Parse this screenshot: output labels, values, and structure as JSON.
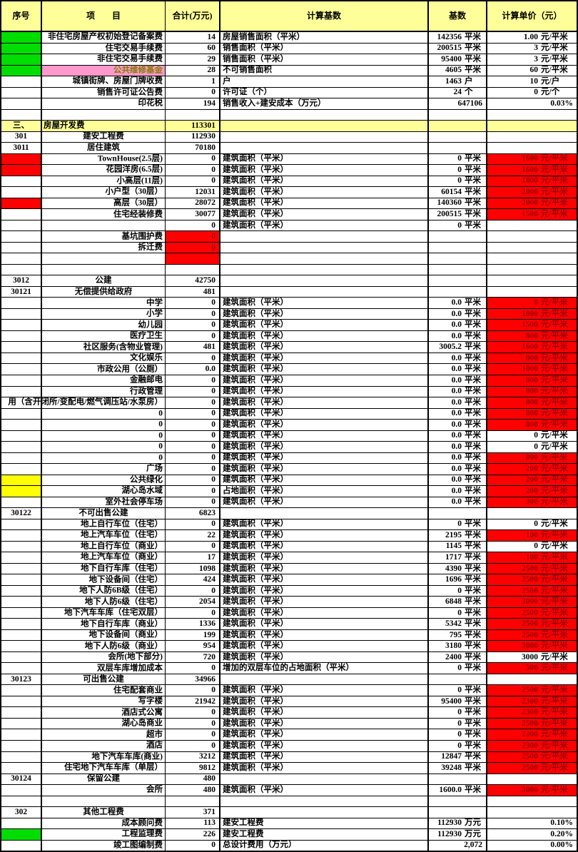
{
  "sheet": {
    "type": "spreadsheet-cost-table",
    "colors": {
      "header_bg": "#ffff99",
      "section_bg": "#ffff99",
      "green_fill": "#00dd00",
      "red_fill": "#fe0000",
      "red_text": "#9c0006",
      "yellow_fill": "#ffff00",
      "pink_fill": "#ff99cc",
      "pink_text": "#7f7f00",
      "grid": "#000000"
    },
    "columns": [
      {
        "key": "seq",
        "label": "序号"
      },
      {
        "key": "item",
        "label": "项　　目"
      },
      {
        "key": "total",
        "label": "合计(万元)"
      },
      {
        "key": "basis",
        "label": "计算基数"
      },
      {
        "key": "base",
        "label": "基数"
      },
      {
        "key": "price",
        "label": "计算单价（元）"
      }
    ],
    "row_key_legend": {
      "s": "seq number text",
      "sb": "seq cell fill: g=green r=red y=yellow",
      "i": "item text",
      "ib": "item cell fill: p=pink",
      "ia": "item align: r=right(default) c=center l=left",
      "t": "total (万元)",
      "tb": "total cell fill: r=red",
      "b": "calculation basis text",
      "v": "base value with unit",
      "p": "unit price text",
      "pb": "price cell fill: r=red",
      "sec": "true = yellow section row"
    },
    "rows": [
      {
        "sb": "g",
        "i": "非住宅房屋产权初始登记备案费",
        "t": "14",
        "b": "房屋销售面积（平米）",
        "v": "142356 平米",
        "p": "1.00 元/平米"
      },
      {
        "sb": "g",
        "i": "住宅交易手续费",
        "t": "60",
        "b": "销售面积（平米）",
        "v": "200515 平米",
        "p": "3 元/平米"
      },
      {
        "sb": "g",
        "i": "非住宅交易手续费",
        "t": "29",
        "b": "销售面积（平米）",
        "v": "95400 平米",
        "p": "3 元/平米"
      },
      {
        "sb": "g",
        "i": "公共维修基金",
        "ib": "p",
        "t": "28",
        "b": "不可销售面积",
        "v": "4605 平米",
        "p": "60 元/平米"
      },
      {
        "i": "城镇街牌、房屋门牌收费",
        "t": "1",
        "b": "户",
        "v": "1463 户",
        "p": "10 元/户"
      },
      {
        "i": "销售许可证公告费",
        "t": "0",
        "b": "许可证（个）",
        "v": "24 个",
        "p": "0 元/个"
      },
      {
        "i": "印花税",
        "t": "194",
        "b": "销售收入+建安成本（万元）",
        "v": "647106",
        "p": "0.03%"
      },
      {},
      {
        "s": "三、",
        "i": "房屋开发费",
        "ia": "l",
        "t": "113301",
        "sec": true
      },
      {
        "s": "301",
        "i": "建安工程费",
        "ia": "c",
        "t": "112930"
      },
      {
        "s": "3011",
        "i": "居住建筑",
        "ia": "c",
        "t": "70180"
      },
      {
        "sb": "r",
        "i": "TownHouse(2.5层)",
        "t": "0",
        "b": "建筑面积（平米）",
        "v": "0 平米",
        "p": "1600 元/平米",
        "pb": "r"
      },
      {
        "sb": "r",
        "i": "花园洋房(6.5层)",
        "t": "0",
        "b": "建筑面积（平米）",
        "v": "0 平米",
        "p": "1600 元/平米",
        "pb": "r"
      },
      {
        "i": "小高层(11层)",
        "t": "0",
        "b": "建筑面积（平米）",
        "v": "0 平米",
        "p": "1800 元/平米",
        "pb": "r"
      },
      {
        "i": "小户型（30层）",
        "t": "12031",
        "b": "建筑面积（平米）",
        "v": "60154 平米",
        "p": "2000 元/平米",
        "pb": "r"
      },
      {
        "sb": "r",
        "i": "高层（30层）",
        "t": "28072",
        "b": "建筑面积（平米）",
        "v": "140360 平米",
        "p": "2000 元/平米",
        "pb": "r"
      },
      {
        "i": "住宅经装修费",
        "t": "30077",
        "b": "建筑面积（平米）",
        "v": "200515 平米",
        "p": "1500 元/平米",
        "pb": "r"
      },
      {
        "t": "0",
        "b": "建筑面积（平米）",
        "v": "0 平米"
      },
      {
        "i": "基坑围护费",
        "t": "0",
        "tb": "r"
      },
      {
        "i": "拆迁费",
        "t": "0",
        "tb": "r"
      },
      {
        "tb": "r"
      },
      {},
      {
        "s": "3012",
        "i": "公建",
        "ia": "c",
        "t": "42750"
      },
      {
        "s": "30121",
        "i": "无偿提供给政府",
        "ia": "c",
        "t": "481"
      },
      {
        "i": "中学",
        "t": "0",
        "b": "建筑面积（平米）",
        "v": "0.0 平米",
        "p": "0 元/平米",
        "pb": "r"
      },
      {
        "i": "小学",
        "t": "0",
        "b": "建筑面积（平米）",
        "v": "0.0 平米",
        "p": "1000 元/平米",
        "pb": "r"
      },
      {
        "i": "幼儿园",
        "t": "0",
        "b": "建筑面积（平米）",
        "v": "0.0 平米",
        "p": "1500 元/平米",
        "pb": "r"
      },
      {
        "i": "医疗卫生",
        "t": "0",
        "b": "建筑面积（平米）",
        "v": "0.0 平米",
        "p": "800 元/平米",
        "pb": "r"
      },
      {
        "i": "社区服务(含物业管理)",
        "t": "481",
        "b": "建筑面积（平米）",
        "v": "3005.2 平米",
        "p": "1600 元/平米",
        "pb": "r"
      },
      {
        "i": "文化娱乐",
        "t": "0",
        "b": "建筑面积（平米）",
        "v": "0.0 平米",
        "p": "800 元/平米",
        "pb": "r"
      },
      {
        "i": "市政公用（公厕）",
        "t": "0.0",
        "b": "建筑面积（平米）",
        "v": "0.0 平米",
        "p": "1000 元/平米",
        "pb": "r"
      },
      {
        "i": "金融邮电",
        "t": "0",
        "b": "建筑面积（平米）",
        "v": "0.0 平米",
        "p": "800 元/平米",
        "pb": "r"
      },
      {
        "i": "行政管理",
        "t": "0",
        "b": "建筑面积（平米）",
        "v": "0.0 平米",
        "p": "800 元/平米",
        "pb": "r"
      },
      {
        "i": "用（含开闭所/变配电/燃气调压站/水泵房）",
        "t": "0",
        "b": "建筑面积（平米）",
        "v": "0.0 平米",
        "p": "800 元/平米",
        "pb": "r"
      },
      {
        "i": "0",
        "t": "0",
        "b": "建筑面积（平米）",
        "v": "0.0 平米",
        "p": "800 元/平米",
        "pb": "r"
      },
      {
        "i": "0",
        "t": "0",
        "b": "建筑面积（平米）",
        "v": "0.0 平米",
        "p": "800 元/平米",
        "pb": "r"
      },
      {
        "i": "0",
        "t": "0",
        "b": "建筑面积（平米）",
        "v": "0.0 平米",
        "p": "0 元/平米"
      },
      {
        "i": "0",
        "t": "0",
        "b": "建筑面积（平米）",
        "v": "0.0 平米",
        "p": "0 元/平米"
      },
      {
        "i": "0",
        "t": "0",
        "b": "建筑面积（平米）",
        "v": "0.0 平米",
        "p": "800 元/平米",
        "pb": "r"
      },
      {
        "i": "广场",
        "t": "0",
        "b": "建筑面积（平米）",
        "v": "0.0 平米",
        "p": "200 元/平米",
        "pb": "r"
      },
      {
        "sb": "y",
        "i": "公共绿化",
        "t": "0",
        "b": "建筑面积（平米）",
        "v": "0.0 平米",
        "p": "200 元/平米",
        "pb": "r"
      },
      {
        "sb": "y",
        "i": "湖心岛水域",
        "t": "0",
        "b": "占地面积（平米）",
        "v": "0.0 平米",
        "p": "200 元/平米",
        "pb": "r"
      },
      {
        "i": "室外社会停车场",
        "t": "0",
        "b": "建筑面积（平米）",
        "v": "0.0 平米",
        "p": "300 元/平米",
        "pb": "r"
      },
      {
        "s": "30122",
        "i": "不可出售公建",
        "ia": "c",
        "t": "6823"
      },
      {
        "i": "地上自行车位（住宅）",
        "t": "0",
        "b": "建筑面积（平米）",
        "v": "0 平米",
        "p": "0 元/平米"
      },
      {
        "i": "地上汽车车位（住宅）",
        "t": "22",
        "b": "建筑面积（平米）",
        "v": "2195 平米",
        "p": "100 元/平米",
        "pb": "r"
      },
      {
        "i": "地上自行车位（商业）",
        "t": "0",
        "b": "建筑面积（平米）",
        "v": "1145 平米",
        "p": "0 元/平米"
      },
      {
        "i": "地上汽车车位（商业）",
        "t": "17",
        "b": "建筑面积（平米）",
        "v": "1717 平米",
        "p": "100 元/平米",
        "pb": "r"
      },
      {
        "i": "地下自行车库（住宅）",
        "t": "1098",
        "b": "建筑面积（平米）",
        "v": "4390 平米",
        "p": "2500 元/平米",
        "pb": "r"
      },
      {
        "i": "地下设备间（住宅）",
        "t": "424",
        "b": "建筑面积（平米）",
        "v": "1696 平米",
        "p": "2500 元/平米",
        "pb": "r"
      },
      {
        "i": "地下人防6B级（住宅）",
        "t": "0",
        "b": "建筑面积（平米）",
        "v": "0 平米",
        "p": "2500 元/平米",
        "pb": "r"
      },
      {
        "i": "地下人防6级（住宅）",
        "t": "2054",
        "b": "建筑面积（平米）",
        "v": "6848 平米",
        "p": "3000 元/平米",
        "pb": "r"
      },
      {
        "i": "地下汽车车库（住宅双层）",
        "t": "0",
        "b": "建筑面积（平米）",
        "v": "0 平米",
        "p": "2500 元/平米",
        "pb": "r"
      },
      {
        "i": "地下自行车库（商业）",
        "t": "1336",
        "b": "建筑面积（平米）",
        "v": "5342 平米",
        "p": "2500 元/平米",
        "pb": "r"
      },
      {
        "i": "地下设备间（商业）",
        "t": "199",
        "b": "建筑面积（平米）",
        "v": "795 平米",
        "p": "2500 元/平米",
        "pb": "r"
      },
      {
        "i": "地下人防6级（商业）",
        "t": "954",
        "b": "建筑面积（平米）",
        "v": "3180 平米",
        "p": "3000 元/平米",
        "pb": "r"
      },
      {
        "i": "会所(地下部分)",
        "t": "720",
        "b": "建筑面积（平米）",
        "v": "2400 平米",
        "p": "3000 元/平米"
      },
      {
        "i": "双层车库增加成本",
        "t": "0",
        "b": "增加的双层车位的占地面积（平米）",
        "v": "0 平米",
        "p": "500 元/平米",
        "pb": "r"
      },
      {
        "s": "30123",
        "i": "可出售公建",
        "ia": "c",
        "t": "34966"
      },
      {
        "i": "住宅配套商业",
        "t": "0",
        "b": "建筑面积（平米）",
        "v": "0 平米",
        "p": "2500 元/平米",
        "pb": "r"
      },
      {
        "i": "写字楼",
        "t": "21942",
        "b": "建筑面积（平米）",
        "v": "95400 平米",
        "p": "2300 元/平米",
        "pb": "r"
      },
      {
        "i": "酒店式公寓",
        "t": "0",
        "b": "建筑面积（平米）",
        "v": "0 平米",
        "p": "2300 元/平米",
        "pb": "r"
      },
      {
        "i": "湖心岛商业",
        "t": "0",
        "b": "建筑面积（平米）",
        "v": "0 平米",
        "p": "2500 元/平米",
        "pb": "r"
      },
      {
        "i": "超市",
        "t": "0",
        "b": "建筑面积（平米）",
        "v": "0 平米",
        "p": "2300 元/平米",
        "pb": "r"
      },
      {
        "i": "酒店",
        "t": "0",
        "b": "建筑面积（平米）",
        "v": "0 平米",
        "p": "2300 元/平米",
        "pb": "r"
      },
      {
        "i": "地下汽车车库(商业)",
        "t": "3212",
        "b": "建筑面积（平米）",
        "v": "12847 平米",
        "p": "2500 元/平米",
        "pb": "r"
      },
      {
        "i": "住宅地下汽车车库（单层）",
        "t": "9812",
        "b": "建筑面积（平米）",
        "v": "39248 平米",
        "p": "2500 元/平米",
        "pb": "r"
      },
      {
        "s": "30124",
        "i": "保留公建",
        "ia": "c",
        "t": "480"
      },
      {
        "i": "会所",
        "t": "480",
        "b": "建筑面积（平米）",
        "v": "1600.0 平米",
        "p": "3000 元/平米",
        "pb": "r"
      },
      {},
      {
        "s": "302",
        "i": "其他工程费",
        "ia": "c",
        "t": "371"
      },
      {
        "i": "成本顾问费",
        "t": "113",
        "b": "建安工程费",
        "v": "112930 万元",
        "p": "0.10%"
      },
      {
        "sb": "g",
        "i": "工程监理费",
        "t": "226",
        "b": "建安工程费",
        "v": "112930 万元",
        "p": "0.20%"
      },
      {
        "i": "竣工图编制费",
        "t": "0",
        "b": "总设计费用（万元）",
        "v": "2,072",
        "p": "0.00%"
      }
    ]
  }
}
